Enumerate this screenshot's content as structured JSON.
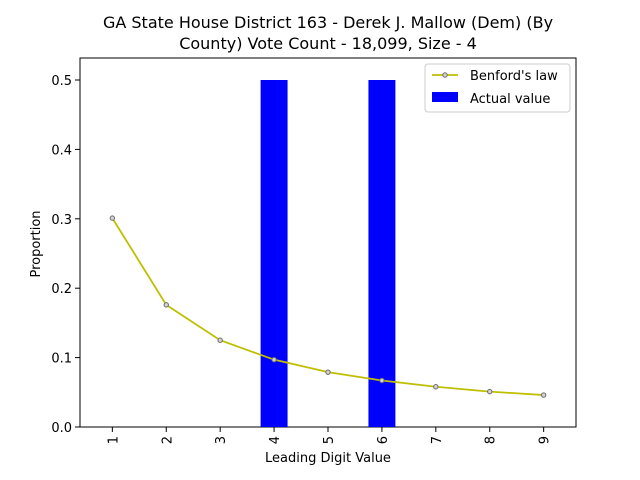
{
  "chart_data": {
    "type": "bar",
    "title_line1": "GA State House District 163 - Derek J. Mallow (Dem) (By",
    "title_line2": "County) Vote Count - 18,099, Size - 4",
    "xlabel": "Leading Digit Value",
    "ylabel": "Proportion",
    "categories": [
      "1",
      "2",
      "3",
      "4",
      "5",
      "6",
      "7",
      "8",
      "9"
    ],
    "ylim": [
      0,
      0.5
    ],
    "yticks": [
      "0.0",
      "0.1",
      "0.2",
      "0.3",
      "0.4",
      "0.5"
    ],
    "series": [
      {
        "name": "Benford's law",
        "kind": "line",
        "color": "#bfbf00",
        "values": [
          0.301,
          0.176,
          0.125,
          0.097,
          0.079,
          0.067,
          0.058,
          0.051,
          0.046
        ]
      },
      {
        "name": "Actual value",
        "kind": "bar",
        "color": "#0000ff",
        "values": [
          0.0,
          0.0,
          0.0,
          0.5,
          0.0,
          0.5,
          0.0,
          0.0,
          0.0
        ]
      }
    ],
    "legend_position": "top-right",
    "grid": false
  }
}
